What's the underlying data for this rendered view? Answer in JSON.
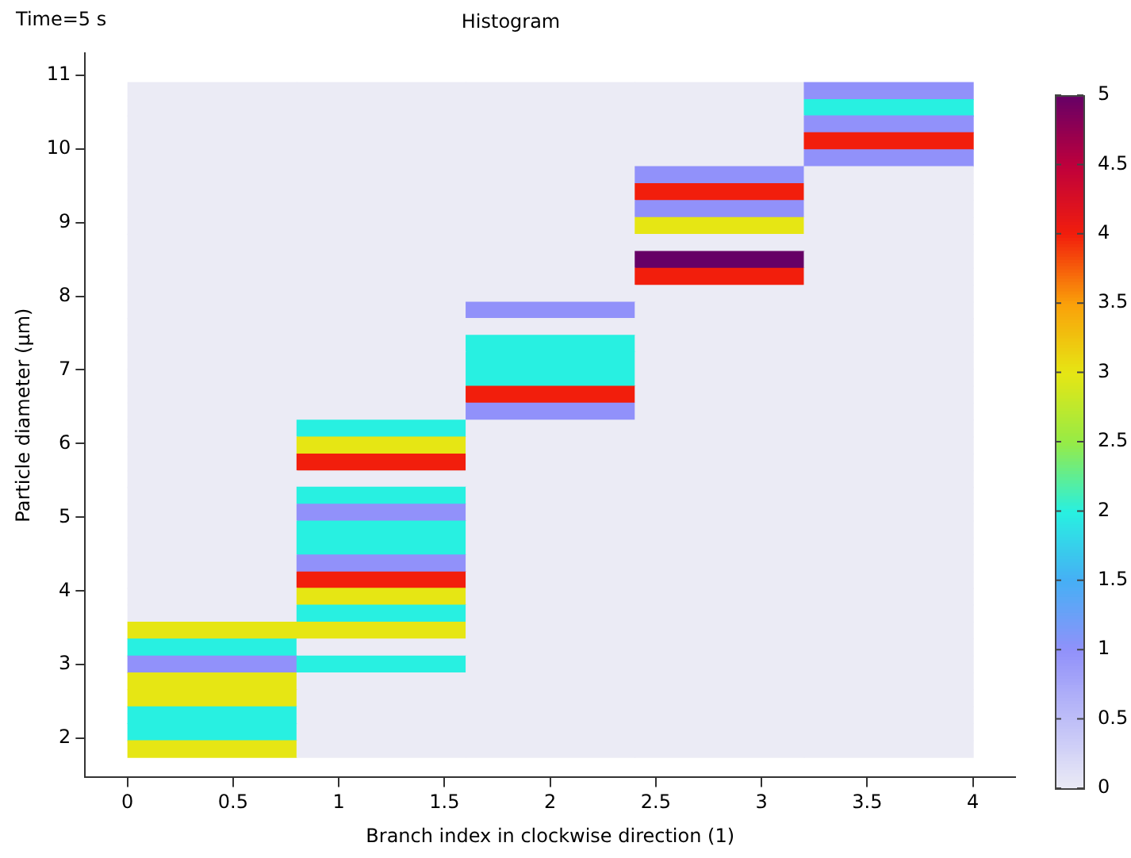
{
  "chart_data": {
    "type": "heatmap",
    "title": "Histogram",
    "xlabel": "Branch index in clockwise direction (1)",
    "ylabel": "Particle diameter (µm)",
    "annotations": [
      "Time=5 s"
    ],
    "x": [
      0.4,
      1.2,
      2,
      2.8,
      3.6
    ],
    "y": [
      10.79,
      10.56,
      10.34,
      10.11,
      9.88,
      9.65,
      9.42,
      9.19,
      8.96,
      8.73,
      8.5,
      8.27,
      8.04,
      7.81,
      7.59,
      7.36,
      7.13,
      6.9,
      6.67,
      6.44,
      6.21,
      5.98,
      5.75,
      5.52,
      5.3,
      5.07,
      4.84,
      4.61,
      4.38,
      4.15,
      3.93,
      3.7,
      3.47,
      3.24,
      3.01,
      2.78,
      2.55,
      2.32,
      2.09,
      1.86
    ],
    "cells": [
      [
        0,
        0,
        0,
        0,
        1
      ],
      [
        0,
        0,
        0,
        0,
        2
      ],
      [
        0,
        0,
        0,
        0,
        1
      ],
      [
        0,
        0,
        0,
        0,
        4
      ],
      [
        0,
        0,
        0,
        0,
        1
      ],
      [
        0,
        0,
        0,
        1,
        0
      ],
      [
        0,
        0,
        0,
        4,
        0
      ],
      [
        0,
        0,
        0,
        1,
        0
      ],
      [
        0,
        0,
        0,
        3,
        0
      ],
      [
        0,
        0,
        0,
        0,
        0
      ],
      [
        0,
        0,
        0,
        5,
        0
      ],
      [
        0,
        0,
        0,
        4,
        0
      ],
      [
        0,
        0,
        0,
        0,
        0
      ],
      [
        0,
        0,
        1,
        0,
        0
      ],
      [
        0,
        0,
        0,
        0,
        0
      ],
      [
        0,
        0,
        2,
        0,
        0
      ],
      [
        0,
        0,
        2,
        0,
        0
      ],
      [
        0,
        0,
        2,
        0,
        0
      ],
      [
        0,
        0,
        4,
        0,
        0
      ],
      [
        0,
        0,
        1,
        0,
        0
      ],
      [
        0,
        2,
        0,
        0,
        0
      ],
      [
        0,
        3,
        0,
        0,
        0
      ],
      [
        0,
        4,
        0,
        0,
        0
      ],
      [
        0,
        0,
        0,
        0,
        0
      ],
      [
        0,
        2,
        0,
        0,
        0
      ],
      [
        0,
        1,
        0,
        0,
        0
      ],
      [
        0,
        2,
        0,
        0,
        0
      ],
      [
        0,
        2,
        0,
        0,
        0
      ],
      [
        0,
        1,
        0,
        0,
        0
      ],
      [
        0,
        4,
        0,
        0,
        0
      ],
      [
        0,
        3,
        0,
        0,
        0
      ],
      [
        0,
        2,
        0,
        0,
        0
      ],
      [
        3,
        3,
        0,
        0,
        0
      ],
      [
        2,
        0,
        0,
        0,
        0
      ],
      [
        1,
        2,
        0,
        0,
        0
      ],
      [
        3,
        0,
        0,
        0,
        0
      ],
      [
        3,
        0,
        0,
        0,
        0
      ],
      [
        2,
        0,
        0,
        0,
        0
      ],
      [
        2,
        0,
        0,
        0,
        0
      ],
      [
        3,
        0,
        0,
        0,
        0
      ]
    ],
    "xlim": [
      -0.2,
      4.2
    ],
    "xticks": [
      0,
      0.5,
      1,
      1.5,
      2,
      2.5,
      3,
      3.5,
      4
    ],
    "ylim": [
      1.47,
      11.3
    ],
    "yticks": [
      2,
      3,
      4,
      5,
      6,
      7,
      8,
      9,
      10,
      11
    ],
    "clim": [
      0,
      5
    ],
    "cticks": [
      0,
      0.5,
      1,
      1.5,
      2,
      2.5,
      3,
      3.5,
      4,
      4.5,
      5
    ],
    "grid": false,
    "legend": false
  }
}
